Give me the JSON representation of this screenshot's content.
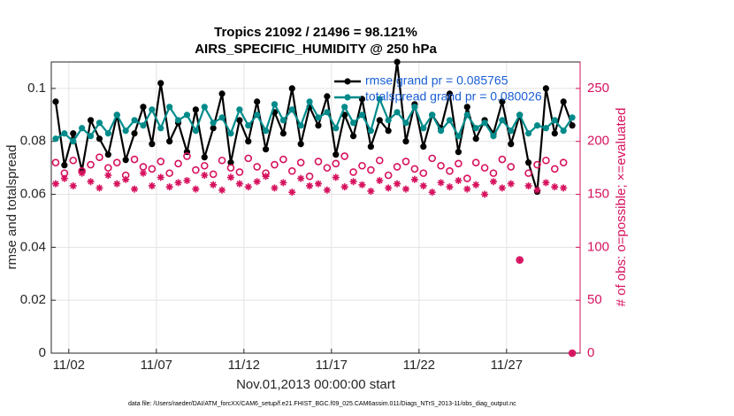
{
  "chart_data": {
    "type": "line",
    "title": [
      "Tropics 21092 / 21496 = 98.121%",
      "AIRS_SPECIFIC_HUMIDITY @ 250 hPa"
    ],
    "xlabel": "Nov.01,2013 00:00:00 start",
    "ylabel": "rmse and totalspread",
    "y2label": "# of obs: o=possible; ×=evaluated",
    "footnote": "data file: /Users/raeder/DAI/ATM_forcXX/CAM6_setup/f.e21.FHIST_BGC.f09_025.CAM6assim.011/Diags_NTrS_2013-11/obs_diag_output.nc",
    "grid": true,
    "legend": "northeast",
    "xlim": [
      1,
      31.2
    ],
    "xticks": [
      {
        "value": 2,
        "label": "11/02"
      },
      {
        "value": 7,
        "label": "11/07"
      },
      {
        "value": 12,
        "label": "11/12"
      },
      {
        "value": 17,
        "label": "11/17"
      },
      {
        "value": 22,
        "label": "11/22"
      },
      {
        "value": 27,
        "label": "11/27"
      }
    ],
    "ylim": [
      0,
      0.11
    ],
    "yticks": [
      0,
      0.02,
      0.04,
      0.06,
      0.08,
      0.1
    ],
    "y2lim": [
      0,
      275
    ],
    "y2ticks": [
      0,
      50,
      100,
      150,
      200,
      250
    ],
    "x": [
      1.25,
      1.75,
      2.25,
      2.75,
      3.25,
      3.75,
      4.25,
      4.75,
      5.25,
      5.75,
      6.25,
      6.75,
      7.25,
      7.75,
      8.25,
      8.75,
      9.25,
      9.75,
      10.25,
      10.75,
      11.25,
      11.75,
      12.25,
      12.75,
      13.25,
      13.75,
      14.25,
      14.75,
      15.25,
      15.75,
      16.25,
      16.75,
      17.25,
      17.75,
      18.25,
      18.75,
      19.25,
      19.75,
      20.25,
      20.75,
      21.25,
      21.75,
      22.25,
      22.75,
      23.25,
      23.75,
      24.25,
      24.75,
      25.25,
      25.75,
      26.25,
      26.75,
      27.25,
      27.75,
      28.25,
      28.75,
      29.25,
      29.75,
      30.25,
      30.75
    ],
    "series": [
      {
        "name": "rmse grand pr = 0.085765",
        "color": "#000000",
        "marker": "dot",
        "values": [
          0.095,
          0.071,
          0.083,
          0.069,
          0.088,
          0.081,
          0.075,
          0.09,
          0.073,
          0.083,
          0.093,
          0.079,
          0.102,
          0.08,
          0.087,
          0.076,
          0.092,
          0.074,
          0.085,
          0.098,
          0.072,
          0.088,
          0.08,
          0.095,
          0.077,
          0.091,
          0.083,
          0.1,
          0.079,
          0.093,
          0.086,
          0.097,
          0.075,
          0.09,
          0.082,
          0.096,
          0.078,
          0.088,
          0.084,
          0.11,
          0.08,
          0.094,
          0.078,
          0.09,
          0.085,
          0.098,
          0.076,
          0.093,
          0.081,
          0.088,
          0.083,
          0.095,
          0.079,
          0.09,
          0.072,
          0.061,
          0.1,
          0.083,
          0.095,
          0.086
        ]
      },
      {
        "name": "totalspread grand pr = 0.080026",
        "color": "#008b8b",
        "marker": "dot",
        "values": [
          0.081,
          0.083,
          0.08,
          0.085,
          0.082,
          0.087,
          0.083,
          0.09,
          0.084,
          0.088,
          0.086,
          0.092,
          0.085,
          0.093,
          0.088,
          0.09,
          0.084,
          0.093,
          0.087,
          0.089,
          0.083,
          0.092,
          0.086,
          0.09,
          0.084,
          0.094,
          0.088,
          0.092,
          0.086,
          0.095,
          0.089,
          0.091,
          0.085,
          0.093,
          0.087,
          0.09,
          0.084,
          0.096,
          0.088,
          0.091,
          0.087,
          0.093,
          0.085,
          0.09,
          0.084,
          0.088,
          0.082,
          0.09,
          0.085,
          0.087,
          0.082,
          0.088,
          0.084,
          0.09,
          0.083,
          0.086,
          0.085,
          0.088,
          0.084,
          0.089
        ]
      },
      {
        "color": "#d6115e",
        "axis": "y2",
        "marker": "circle",
        "values": [
          180,
          170,
          182,
          172,
          178,
          185,
          175,
          180,
          168,
          183,
          176,
          174,
          181,
          170,
          179,
          186,
          173,
          177,
          169,
          182,
          175,
          171,
          184,
          176,
          170,
          178,
          183,
          172,
          180,
          167,
          181,
          175,
          179,
          186,
          171,
          177,
          173,
          182,
          168,
          176,
          181,
          174,
          170,
          184,
          177,
          172,
          179,
          165,
          180,
          175,
          170,
          183,
          176,
          88,
          170,
          178,
          182,
          174,
          180,
          0
        ]
      },
      {
        "color": "#d6115e",
        "axis": "y2",
        "marker": "asterisk",
        "values": [
          160,
          165,
          158,
          170,
          162,
          156,
          168,
          160,
          164,
          155,
          170,
          158,
          166,
          157,
          161,
          163,
          155,
          168,
          159,
          154,
          166,
          160,
          157,
          162,
          167,
          156,
          161,
          152,
          165,
          158,
          160,
          154,
          166,
          157,
          162,
          159,
          153,
          163,
          156,
          160,
          155,
          164,
          158,
          152,
          161,
          157,
          163,
          155,
          159,
          150,
          162,
          156,
          160,
          88,
          158,
          154,
          161,
          157,
          156,
          0
        ]
      }
    ]
  }
}
